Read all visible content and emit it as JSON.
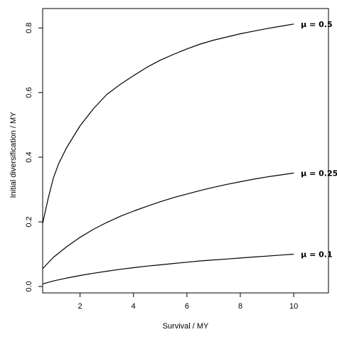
{
  "chart_data": {
    "type": "line",
    "xlabel": "Survival  / MY",
    "ylabel": "Initial diversification / MY",
    "xlim": [
      0.6,
      11.3
    ],
    "ylim": [
      -0.02,
      0.86
    ],
    "xticks": [
      2,
      4,
      6,
      8,
      10
    ],
    "yticks": [
      0.0,
      0.2,
      0.4,
      0.6,
      0.8
    ],
    "x_tick_labels": [
      "2",
      "4",
      "6",
      "8",
      "10"
    ],
    "y_tick_labels": [
      "0.0",
      "0.2",
      "0.4",
      "0.6",
      "0.8"
    ],
    "grid": false,
    "legend": "none",
    "series": [
      {
        "name": "μ = 0.5",
        "x": [
          0.6,
          0.8,
          1.0,
          1.2,
          1.5,
          2.0,
          2.5,
          3.0,
          3.5,
          4.0,
          4.5,
          5.0,
          5.5,
          6.0,
          6.5,
          7.0,
          7.5,
          8.0,
          8.5,
          9.0,
          9.5,
          10.0
        ],
        "y": [
          0.195,
          0.27,
          0.335,
          0.38,
          0.43,
          0.497,
          0.55,
          0.594,
          0.625,
          0.652,
          0.678,
          0.7,
          0.718,
          0.735,
          0.75,
          0.762,
          0.772,
          0.782,
          0.79,
          0.798,
          0.805,
          0.812
        ]
      },
      {
        "name": "μ = 0.25",
        "x": [
          0.6,
          1.0,
          1.5,
          2.0,
          2.5,
          3.0,
          3.5,
          4.0,
          4.5,
          5.0,
          5.5,
          6.0,
          6.5,
          7.0,
          7.5,
          8.0,
          8.5,
          9.0,
          9.5,
          10.0
        ],
        "y": [
          0.055,
          0.09,
          0.123,
          0.152,
          0.177,
          0.198,
          0.217,
          0.233,
          0.248,
          0.262,
          0.275,
          0.286,
          0.297,
          0.307,
          0.316,
          0.324,
          0.332,
          0.339,
          0.345,
          0.351
        ]
      },
      {
        "name": "μ = 0.1",
        "x": [
          0.6,
          1.0,
          1.5,
          2.0,
          2.5,
          3.0,
          3.5,
          4.0,
          4.5,
          5.0,
          5.5,
          6.0,
          6.5,
          7.0,
          7.5,
          8.0,
          8.5,
          9.0,
          9.5,
          10.0
        ],
        "y": [
          0.008,
          0.017,
          0.026,
          0.034,
          0.041,
          0.047,
          0.053,
          0.058,
          0.063,
          0.067,
          0.071,
          0.075,
          0.079,
          0.082,
          0.085,
          0.088,
          0.091,
          0.094,
          0.097,
          0.1
        ]
      }
    ]
  }
}
